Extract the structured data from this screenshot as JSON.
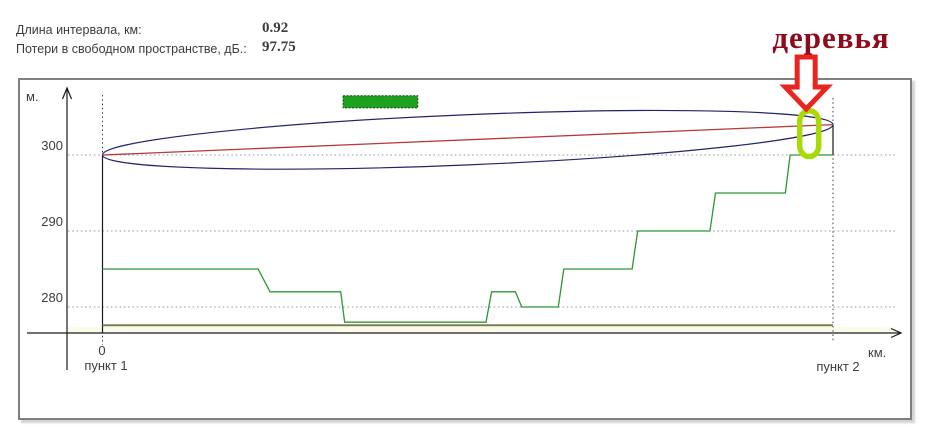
{
  "header": {
    "fields": [
      {
        "label": "Длина интервала, км:",
        "value": "0.92"
      },
      {
        "label": "Потери в свободном пространстве, дБ.:",
        "value": "97.75"
      }
    ]
  },
  "annotation": {
    "label": "деревья",
    "arrow": "down-block-arrow",
    "text_color": "#8e0a1c",
    "arrow_color": "#e8251f",
    "highlight_color": "#a9da07"
  },
  "chart_data": {
    "type": "line",
    "title": "",
    "xlabel": "км.",
    "ylabel": "м.",
    "x_axis": {
      "length_km": 0.92,
      "tick_labels": [
        "0"
      ],
      "site1_label": "пункт 1",
      "site2_label": "пункт 2"
    },
    "y_axis": {
      "ticks": [
        300,
        290,
        280
      ],
      "units_m": true
    },
    "series": [
      {
        "name": "line-of-sight",
        "color": "#b23a3a",
        "points": [
          [
            0,
            300
          ],
          [
            0.92,
            304
          ]
        ]
      },
      {
        "name": "terrain-profile",
        "color": "#2e9633",
        "points": [
          [
            0,
            285
          ],
          [
            0.196,
            285
          ],
          [
            0.211,
            282
          ],
          [
            0.3,
            282
          ],
          [
            0.305,
            278
          ],
          [
            0.483,
            278
          ],
          [
            0.49,
            282
          ],
          [
            0.52,
            282
          ],
          [
            0.528,
            280
          ],
          [
            0.574,
            280
          ],
          [
            0.581,
            285
          ],
          [
            0.667,
            285
          ],
          [
            0.674,
            290
          ],
          [
            0.765,
            290
          ],
          [
            0.772,
            295
          ],
          [
            0.86,
            295
          ],
          [
            0.866,
            300
          ],
          [
            0.92,
            300
          ]
        ]
      },
      {
        "name": "reference-level",
        "color": "#7d7d52",
        "points": [
          [
            0,
            277.6
          ],
          [
            0.92,
            277.6
          ]
        ]
      }
    ],
    "fresnel_zone": {
      "color": "#23236b",
      "from": [
        0,
        300
      ],
      "to": [
        0.92,
        304
      ],
      "half_width_m": 3.3
    },
    "obstacle_marker": {
      "fill": "#1fa11f",
      "border": "#0b4d0b",
      "km_from": 0.303,
      "km_to": 0.397,
      "m_from": 306.2,
      "m_to": 307.8
    },
    "trees_highlight": {
      "color": "#a9da07",
      "km_from": 0.878,
      "km_to": 0.902,
      "m_from": 299.8,
      "m_to": 305.8
    },
    "grid": "dotted-horizontal",
    "legend": "none"
  }
}
